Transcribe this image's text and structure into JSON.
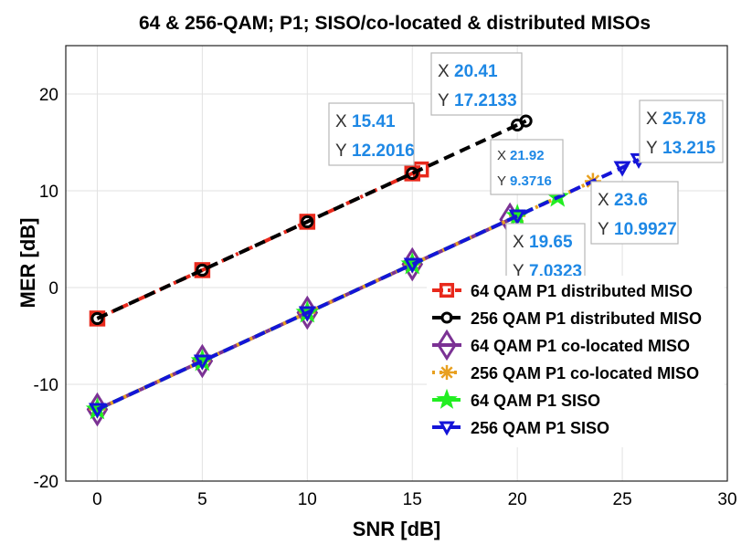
{
  "chart_data": {
    "type": "line",
    "title": "64 & 256-QAM; P1; SISO/co-located & distributed MISOs",
    "xlabel": "SNR [dB]",
    "ylabel": "MER [dB]",
    "xlim": [
      -1.5,
      30
    ],
    "ylim": [
      -20,
      25
    ],
    "xticks": [
      0,
      5,
      10,
      15,
      20,
      25,
      30
    ],
    "yticks": [
      -20,
      -10,
      0,
      10,
      20
    ],
    "grid": true,
    "legend_position": "bottom-right",
    "series": [
      {
        "name": "64 QAM   P1 distributed MISO",
        "color": "#e8291c",
        "dash": "dashdot",
        "marker": "square",
        "x": [
          0,
          5,
          10,
          15,
          15.41
        ],
        "y": [
          -3.2,
          1.8,
          6.8,
          11.8,
          12.2016
        ]
      },
      {
        "name": "256 QAM P1 distributed MISO",
        "color": "#000000",
        "dash": "dash",
        "marker": "circle",
        "x": [
          0,
          5,
          10,
          15,
          20,
          20.41
        ],
        "y": [
          -3.2,
          1.8,
          6.8,
          11.8,
          16.8,
          17.2133
        ]
      },
      {
        "name": "64 QAM   P1 co-located MISO",
        "color": "#7b3294",
        "dash": "solid",
        "marker": "diamond",
        "x": [
          0,
          5,
          10,
          15,
          19.65
        ],
        "y": [
          -12.6,
          -7.6,
          -2.6,
          2.4,
          7.0323
        ]
      },
      {
        "name": "256 QAM P1 co-located MISO",
        "color": "#e8a020",
        "dash": "dot",
        "marker": "asterisk",
        "x": [
          0,
          5,
          10,
          15,
          20,
          23.6
        ],
        "y": [
          -12.6,
          -7.6,
          -2.6,
          2.4,
          7.4,
          10.9927
        ]
      },
      {
        "name": "64 QAM   P1 SISO",
        "color": "#22ee22",
        "dash": "dash",
        "marker": "star",
        "x": [
          0,
          5,
          10,
          15,
          20,
          21.92
        ],
        "y": [
          -12.6,
          -7.6,
          -2.6,
          2.4,
          7.4,
          9.3716
        ]
      },
      {
        "name": "256 QAM P1 SISO",
        "color": "#1414d8",
        "dash": "dash",
        "marker": "triangle-down",
        "x": [
          0,
          5,
          10,
          15,
          20,
          25,
          25.78
        ],
        "y": [
          -12.6,
          -7.6,
          -2.6,
          2.4,
          7.4,
          12.4,
          13.215
        ]
      }
    ],
    "annotations": [
      {
        "x_text": "15.41",
        "y_text": "12.2016"
      },
      {
        "x_text": "20.41",
        "y_text": "17.2133"
      },
      {
        "x_text": "21.92",
        "y_text": "9.3716"
      },
      {
        "x_text": "19.65",
        "y_text": "7.0323"
      },
      {
        "x_text": "23.6",
        "y_text": "10.9927"
      },
      {
        "x_text": "25.78",
        "y_text": "13.215"
      }
    ],
    "annotation_key_x": "X",
    "annotation_key_y": "Y"
  }
}
